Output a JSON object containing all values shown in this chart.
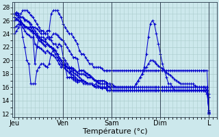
{
  "background_color": "#cce8ec",
  "grid_color": "#aacccc",
  "line_color": "#0000cc",
  "marker": "+",
  "marker_size": 3,
  "marker_lw": 0.8,
  "xlabel": "Température (°c)",
  "xlabel_fontsize": 8,
  "yticks": [
    12,
    14,
    16,
    18,
    20,
    22,
    24,
    26,
    28
  ],
  "ytick_fontsize": 6.5,
  "ylim": [
    11.5,
    28.8
  ],
  "xtick_labels": [
    "Jeu",
    "Ven",
    "Sam",
    "Dim",
    "L"
  ],
  "xtick_positions": [
    0,
    48,
    96,
    144,
    192
  ],
  "xlim": [
    -2,
    200
  ],
  "linewidth": 0.75,
  "series": [
    [
      27.0,
      27.2,
      26.8,
      26.5,
      26.5,
      26.0,
      26.0,
      25.8,
      25.0,
      24.5,
      24.0,
      23.5,
      23.0,
      22.8,
      22.5,
      22.2,
      22.5,
      22.2,
      22.0,
      21.5,
      21.0,
      20.5,
      20.0,
      19.5,
      19.0,
      18.8,
      18.5,
      18.2,
      18.5,
      18.2,
      18.0,
      17.8,
      17.5,
      17.2,
      17.0,
      16.8,
      16.5,
      16.5,
      16.5,
      16.2,
      16.5,
      16.2,
      16.0,
      15.8,
      16.0,
      15.8,
      15.5,
      15.5,
      15.5,
      15.5,
      15.5,
      15.5,
      15.5,
      15.5,
      15.5,
      15.5,
      15.5,
      15.5,
      15.5,
      15.5,
      15.5,
      15.5,
      15.5,
      15.5,
      15.5,
      15.5,
      15.5,
      15.5,
      15.5,
      15.5,
      15.5,
      15.5,
      15.5,
      15.5,
      15.5,
      15.5,
      15.5,
      15.5,
      15.5,
      15.5,
      15.5,
      15.5,
      15.5,
      15.5,
      15.5,
      15.5,
      15.5,
      15.5,
      15.5,
      15.5,
      15.5,
      15.5,
      15.5,
      15.5,
      15.5,
      15.5,
      12.5
    ],
    [
      27.0,
      27.2,
      27.0,
      27.0,
      27.5,
      27.5,
      27.5,
      27.2,
      26.8,
      26.5,
      26.0,
      25.5,
      25.0,
      24.5,
      24.5,
      24.0,
      24.5,
      24.5,
      27.0,
      27.5,
      27.5,
      27.5,
      27.0,
      26.5,
      25.5,
      25.0,
      24.5,
      24.0,
      24.0,
      23.5,
      23.0,
      22.5,
      21.5,
      21.0,
      21.0,
      20.5,
      20.0,
      19.5,
      19.5,
      19.0,
      19.0,
      19.0,
      19.0,
      18.8,
      18.5,
      18.5,
      18.5,
      18.5,
      18.5,
      18.5,
      18.5,
      18.5,
      18.5,
      18.5,
      18.5,
      18.5,
      18.5,
      18.5,
      18.5,
      18.5,
      18.5,
      18.5,
      18.5,
      18.5,
      18.5,
      18.5,
      18.5,
      18.5,
      18.5,
      18.5,
      18.5,
      18.5,
      18.5,
      18.5,
      18.5,
      18.5,
      18.5,
      18.5,
      18.5,
      18.5,
      18.5,
      18.5,
      18.5,
      18.5,
      18.5,
      18.5,
      18.5,
      18.5,
      18.5,
      18.5,
      18.5,
      18.5,
      18.5,
      18.5,
      18.5,
      18.5,
      12.0
    ],
    [
      27.0,
      26.8,
      26.5,
      26.0,
      25.5,
      25.0,
      25.0,
      25.0,
      25.0,
      25.0,
      25.0,
      24.8,
      24.5,
      24.0,
      24.0,
      24.0,
      24.0,
      23.5,
      23.0,
      22.5,
      22.5,
      22.0,
      22.5,
      22.2,
      20.5,
      20.0,
      19.5,
      19.0,
      18.8,
      18.5,
      18.5,
      18.2,
      18.0,
      18.0,
      18.0,
      17.8,
      17.5,
      17.5,
      17.5,
      17.2,
      17.0,
      17.0,
      17.0,
      17.0,
      17.0,
      16.8,
      16.5,
      16.5,
      16.5,
      16.2,
      16.0,
      16.0,
      16.0,
      16.0,
      16.0,
      16.0,
      16.0,
      16.0,
      16.0,
      16.0,
      16.0,
      16.0,
      16.0,
      16.0,
      16.0,
      16.0,
      16.0,
      16.0,
      16.0,
      16.0,
      16.0,
      16.0,
      16.0,
      16.0,
      16.0,
      16.0,
      16.0,
      16.0,
      16.0,
      16.0,
      16.0,
      16.0,
      16.0,
      16.0,
      16.0,
      16.0,
      16.0,
      16.0,
      16.0,
      16.0,
      16.0,
      16.0,
      16.0,
      16.0,
      16.0,
      16.0,
      12.2
    ],
    [
      26.5,
      26.2,
      26.0,
      25.8,
      25.5,
      25.2,
      25.0,
      24.8,
      24.5,
      24.2,
      24.0,
      23.8,
      23.5,
      23.2,
      23.0,
      22.8,
      23.5,
      23.2,
      23.5,
      24.0,
      24.0,
      23.8,
      23.5,
      23.2,
      23.0,
      22.5,
      22.0,
      21.5,
      21.0,
      20.5,
      20.5,
      20.2,
      18.5,
      18.5,
      18.5,
      18.2,
      18.0,
      17.8,
      17.5,
      17.2,
      17.0,
      16.8,
      16.5,
      16.5,
      16.5,
      16.5,
      16.2,
      16.0,
      15.5,
      15.5,
      15.5,
      15.5,
      15.5,
      15.5,
      15.5,
      15.5,
      15.5,
      15.5,
      15.5,
      15.5,
      15.5,
      15.5,
      15.5,
      15.5,
      15.5,
      15.5,
      15.5,
      15.5,
      15.5,
      15.5,
      15.5,
      15.5,
      15.5,
      15.5,
      15.5,
      15.5,
      15.5,
      15.5,
      15.5,
      15.5,
      15.5,
      15.5,
      15.5,
      15.5,
      15.5,
      15.5,
      15.5,
      15.5,
      15.5,
      15.5,
      15.5,
      15.5,
      15.5,
      15.5,
      15.5,
      15.5,
      12.1
    ],
    [
      26.5,
      26.2,
      26.0,
      25.5,
      25.0,
      24.5,
      24.0,
      23.8,
      23.5,
      23.5,
      19.5,
      22.0,
      23.5,
      23.5,
      23.5,
      23.2,
      22.5,
      22.2,
      22.0,
      21.8,
      21.5,
      21.0,
      20.5,
      20.0,
      19.5,
      19.0,
      17.5,
      17.5,
      17.5,
      17.2,
      17.0,
      16.8,
      17.0,
      17.0,
      16.5,
      16.5,
      16.5,
      16.5,
      16.5,
      16.2,
      16.0,
      16.0,
      16.0,
      16.0,
      16.0,
      16.0,
      16.0,
      16.0,
      16.0,
      16.0,
      16.0,
      16.0,
      16.0,
      16.0,
      16.0,
      16.0,
      16.0,
      16.0,
      16.0,
      16.0,
      16.0,
      16.0,
      16.0,
      16.0,
      16.0,
      16.0,
      16.0,
      16.0,
      16.0,
      16.0,
      16.0,
      16.0,
      16.0,
      16.0,
      16.0,
      16.0,
      16.0,
      16.0,
      16.0,
      16.0,
      16.0,
      16.0,
      16.0,
      16.0,
      16.0,
      16.0,
      16.0,
      16.0,
      16.0,
      16.0,
      16.0,
      16.0,
      16.0,
      16.0,
      16.0,
      16.0,
      12.3
    ],
    [
      26.0,
      26.2,
      26.5,
      26.5,
      26.5,
      26.2,
      26.0,
      25.8,
      25.5,
      25.0,
      24.5,
      24.0,
      23.5,
      23.0,
      22.5,
      22.2,
      22.5,
      22.2,
      22.0,
      21.8,
      21.5,
      21.0,
      20.5,
      20.0,
      20.0,
      19.5,
      19.0,
      18.8,
      18.0,
      17.8,
      17.5,
      17.2,
      17.0,
      17.0,
      17.0,
      16.8,
      16.5,
      16.5,
      16.5,
      16.2,
      16.0,
      16.0,
      16.0,
      16.0,
      16.0,
      15.8,
      15.5,
      15.5,
      15.5,
      15.5,
      15.5,
      15.5,
      15.5,
      15.5,
      15.5,
      15.5,
      15.5,
      15.5,
      15.5,
      15.5,
      15.5,
      15.5,
      15.5,
      15.5,
      15.5,
      15.5,
      15.5,
      15.5,
      15.5,
      15.5,
      15.5,
      15.5,
      15.5,
      15.5,
      15.5,
      15.5,
      15.5,
      15.5,
      15.5,
      15.5,
      15.5,
      15.5,
      15.5,
      15.5,
      15.5,
      15.5,
      15.5,
      15.5,
      15.5,
      15.5,
      15.5,
      15.5,
      15.5,
      15.5,
      15.5,
      15.5,
      12.0
    ],
    [
      25.0,
      25.2,
      25.5,
      25.5,
      23.5,
      22.0,
      20.0,
      19.5,
      16.5,
      16.5,
      16.5,
      18.5,
      19.0,
      19.5,
      19.5,
      19.2,
      19.0,
      19.5,
      21.0,
      21.5,
      21.5,
      21.0,
      20.5,
      20.0,
      19.5,
      19.2,
      19.0,
      18.8,
      19.0,
      18.8,
      18.5,
      18.2,
      18.5,
      18.5,
      18.5,
      18.2,
      18.0,
      17.8,
      17.5,
      17.2,
      17.0,
      16.8,
      16.5,
      16.5,
      16.5,
      16.5,
      16.5,
      16.5,
      16.0,
      16.0,
      16.0,
      16.0,
      16.0,
      16.0,
      16.0,
      16.0,
      16.0,
      16.0,
      16.0,
      16.0,
      16.5,
      17.0,
      17.5,
      18.0,
      18.5,
      19.0,
      19.5,
      20.0,
      20.0,
      19.8,
      19.5,
      19.2,
      19.0,
      18.8,
      18.5,
      18.2,
      18.0,
      17.8,
      17.5,
      17.2,
      17.0,
      16.8,
      16.5,
      16.5,
      16.5,
      16.5,
      16.5,
      16.5,
      16.5,
      16.2,
      16.0,
      16.0,
      16.0,
      16.0,
      16.0,
      15.5,
      14.5
    ],
    [
      24.0,
      24.5,
      25.0,
      25.5,
      25.5,
      25.2,
      25.0,
      24.8,
      24.5,
      24.5,
      22.5,
      22.2,
      22.0,
      21.8,
      21.5,
      21.2,
      21.5,
      21.2,
      21.0,
      20.8,
      20.5,
      20.0,
      19.5,
      19.0,
      19.5,
      19.2,
      19.0,
      18.8,
      17.5,
      17.5,
      17.2,
      17.0,
      17.0,
      17.0,
      17.0,
      16.8,
      16.5,
      16.5,
      16.5,
      16.2,
      16.0,
      16.0,
      16.0,
      16.0,
      16.0,
      16.0,
      16.0,
      16.0,
      16.0,
      16.0,
      16.0,
      16.0,
      16.0,
      16.0,
      16.0,
      16.0,
      16.0,
      16.0,
      16.0,
      16.0,
      16.5,
      17.0,
      17.5,
      18.0,
      19.0,
      21.0,
      23.5,
      25.5,
      26.0,
      25.5,
      24.0,
      22.5,
      21.0,
      19.5,
      18.5,
      17.5,
      16.5,
      16.5,
      16.0,
      15.5,
      15.5,
      15.5,
      15.5,
      15.5,
      15.5,
      15.5,
      15.5,
      15.5,
      15.5,
      15.5,
      15.5,
      15.5,
      15.5,
      15.5,
      15.5,
      15.0,
      15.0
    ]
  ]
}
